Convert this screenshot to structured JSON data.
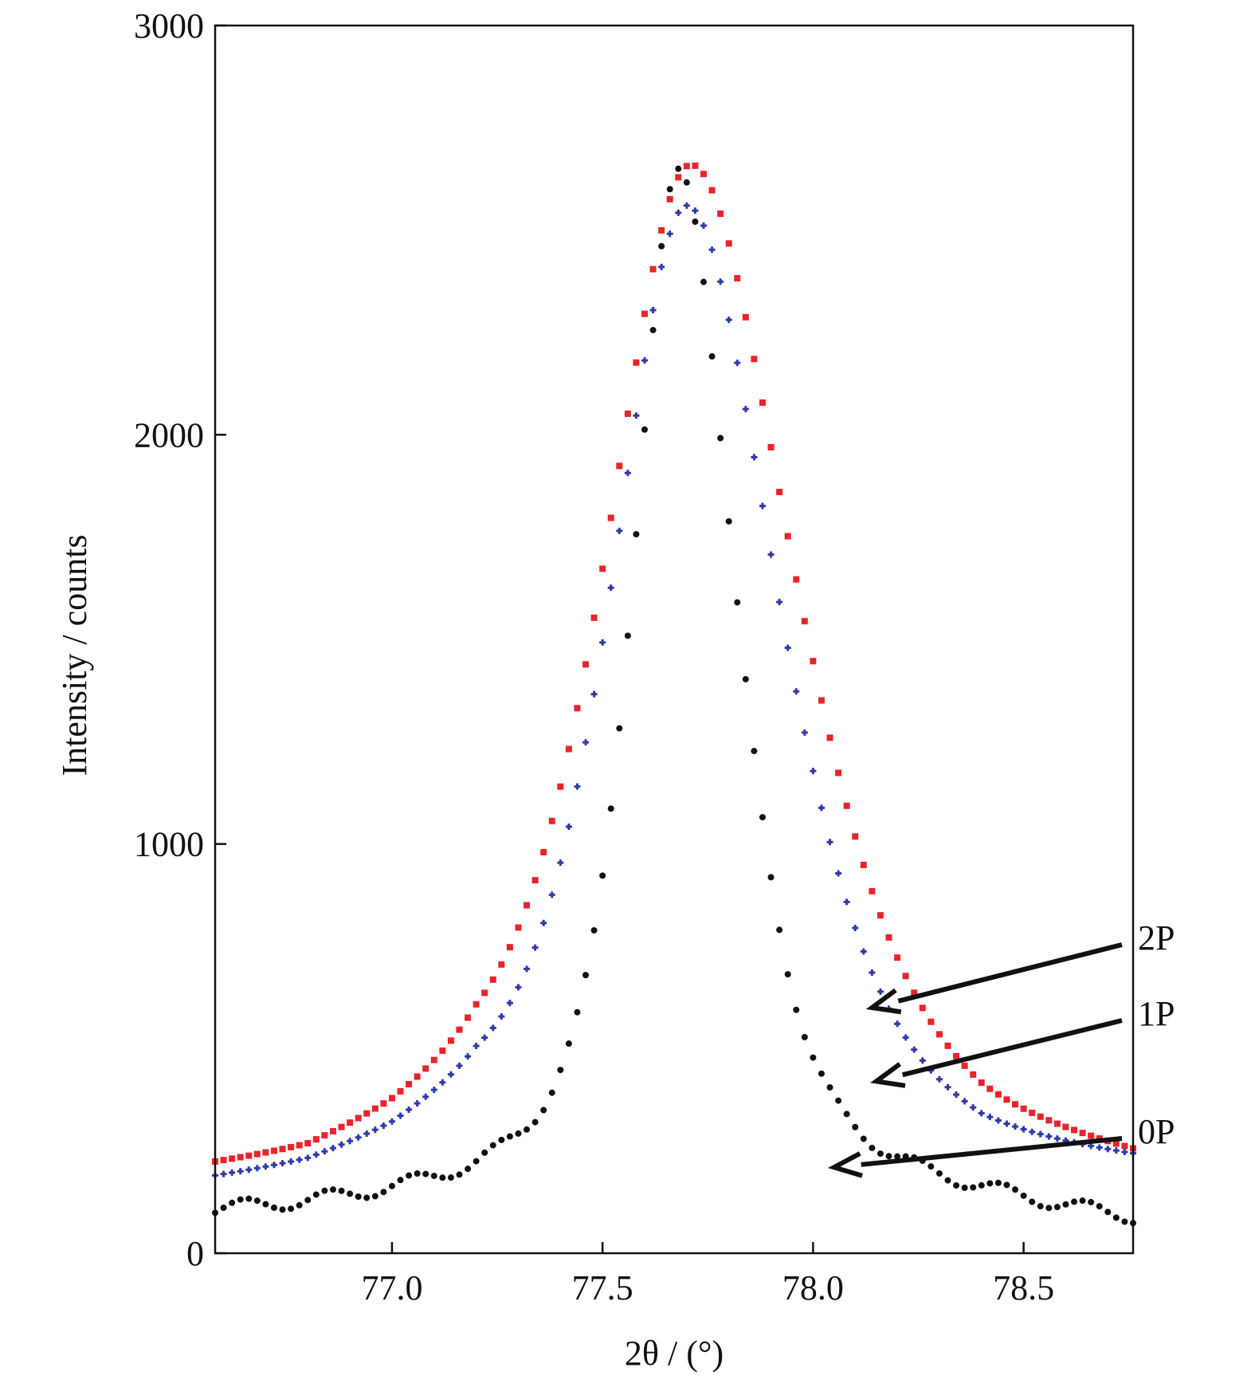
{
  "chart_data": {
    "type": "scatter",
    "xlabel": "2θ / (°)",
    "ylabel": "Intensity / counts",
    "xlim": [
      76.58,
      78.76
    ],
    "ylim": [
      0,
      3000
    ],
    "x_ticks": [
      "77.0",
      "77.5",
      "78.0",
      "78.5"
    ],
    "x_tick_values": [
      77.0,
      77.5,
      78.0,
      78.5
    ],
    "y_ticks": [
      "0",
      "1000",
      "2000",
      "3000"
    ],
    "y_tick_values": [
      0,
      1000,
      2000,
      3000
    ],
    "grid": false,
    "legend": "arrow labels at right",
    "step": 0.02,
    "series": [
      {
        "name": "2P",
        "color": "#e8242b",
        "marker": "square",
        "peak": {
          "x": 77.71,
          "y": 2660,
          "half_width_left": 0.24,
          "half_width_right": 0.28
        },
        "background": [
          [
            76.58,
            165
          ],
          [
            76.8,
            180
          ],
          [
            77.0,
            240
          ],
          [
            77.2,
            330
          ],
          [
            78.0,
            330
          ],
          [
            78.4,
            210
          ],
          [
            78.76,
            165
          ]
        ],
        "arrow_tip": {
          "x": 78.14,
          "y": 600
        }
      },
      {
        "name": "1P",
        "color": "#2e3aa8",
        "marker": "plus",
        "peak": {
          "x": 77.7,
          "y": 2560,
          "half_width_left": 0.21,
          "half_width_right": 0.25
        },
        "background": [
          [
            76.58,
            145
          ],
          [
            76.8,
            165
          ],
          [
            77.0,
            215
          ],
          [
            77.2,
            300
          ],
          [
            78.0,
            290
          ],
          [
            78.4,
            190
          ],
          [
            78.76,
            175
          ]
        ],
        "arrow_tip": {
          "x": 78.15,
          "y": 420
        }
      },
      {
        "name": "0P",
        "color": "#111111",
        "marker": "dot",
        "peak": {
          "x": 77.68,
          "y": 2650,
          "half_width_left": 0.13,
          "half_width_right": 0.16
        },
        "background": [
          [
            76.58,
            90
          ],
          [
            76.8,
            100
          ],
          [
            77.0,
            115
          ],
          [
            77.2,
            130
          ],
          [
            77.4,
            160
          ],
          [
            78.0,
            130
          ],
          [
            78.4,
            100
          ],
          [
            78.76,
            60
          ]
        ],
        "ripple": {
          "amplitude": 18,
          "period": 0.2
        },
        "arrow_tip": {
          "x": 78.05,
          "y": 210
        }
      }
    ]
  }
}
